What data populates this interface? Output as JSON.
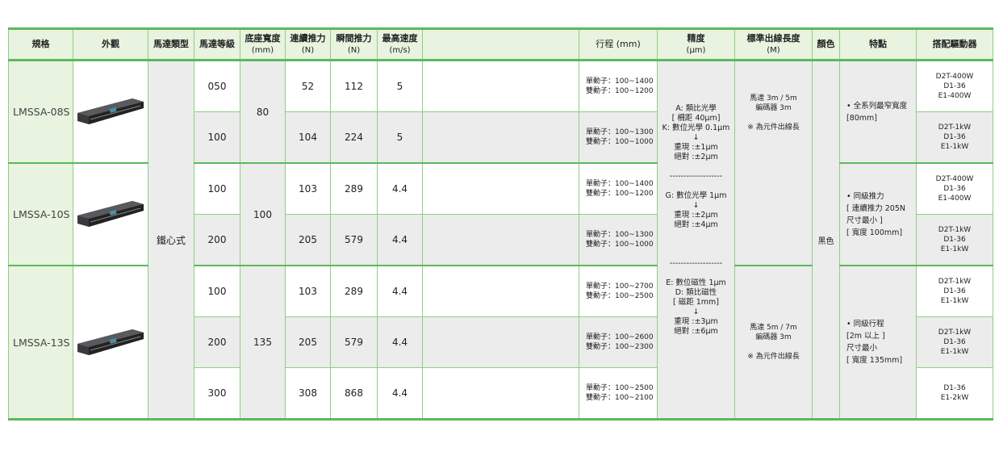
{
  "header": {
    "model": "規格",
    "appearance": "外觀",
    "motor_type": "馬達類型",
    "motor_grade": "馬達等級",
    "base_width": "底座寬度",
    "base_width_unit": "(mm)",
    "cont_force": "連續推力",
    "cont_force_unit": "(N)",
    "peak_force": "瞬間推力",
    "peak_force_unit": "(N)",
    "max_speed": "最高速度",
    "max_speed_unit": "(m/s)",
    "stroke": "行程 (mm)",
    "precision": "精度",
    "precision_unit": "(µm)",
    "cable": "標準出線長度",
    "cable_unit": "(M)",
    "color": "顏色",
    "features": "特點",
    "driver": "搭配驅動器"
  },
  "motor_type": "鐵心式",
  "color": "黑色",
  "groups": [
    {
      "model": "LMSSA-08S",
      "base_width": "80",
      "cable": [
        "馬達 3m / 5m",
        "編碼器 3m",
        "※ 為元件出線長"
      ],
      "features": [
        "全系列最窄寬度",
        "[80mm]"
      ],
      "rows": [
        {
          "grade": "050",
          "cont": "52",
          "peak": "112",
          "speed": "5",
          "stroke": [
            "單動子：100~1400",
            "雙動子：100~1200"
          ],
          "driver": [
            "D2T-400W",
            "D1-36",
            "E1-400W"
          ]
        },
        {
          "grade": "100",
          "cont": "104",
          "peak": "224",
          "speed": "5",
          "stroke": [
            "單動子：100~1300",
            "雙動子：100~1000"
          ],
          "driver": [
            "D2T-1kW",
            "D1-36",
            "E1-1kW"
          ]
        }
      ]
    },
    {
      "model": "LMSSA-10S",
      "base_width": "100",
      "features": [
        "同級推力",
        "[ 連續推力 205N",
        "尺寸最小 ]",
        "[ 寬度 100mm]"
      ],
      "rows": [
        {
          "grade": "100",
          "cont": "103",
          "peak": "289",
          "speed": "4.4",
          "stroke": [
            "單動子：100~1400",
            "雙動子：100~1200"
          ],
          "driver": [
            "D2T-400W",
            "D1-36",
            "E1-400W"
          ]
        },
        {
          "grade": "200",
          "cont": "205",
          "peak": "579",
          "speed": "4.4",
          "stroke": [
            "單動子：100~1300",
            "雙動子：100~1000"
          ],
          "driver": [
            "D2T-1kW",
            "D1-36",
            "E1-1kW"
          ]
        }
      ]
    },
    {
      "model": "LMSSA-13S",
      "base_width": "135",
      "cable": [
        "馬達 5m / 7m",
        "編碼器 3m",
        "※ 為元件出線長"
      ],
      "features": [
        "同級行程",
        "[2m 以上 ]",
        "尺寸最小",
        "[ 寬度 135mm]"
      ],
      "rows": [
        {
          "grade": "100",
          "cont": "103",
          "peak": "289",
          "speed": "4.4",
          "stroke": [
            "單動子：100~2700",
            "雙動子：100~2500"
          ],
          "driver": [
            "D2T-1kW",
            "D1-36",
            "E1-1kW"
          ]
        },
        {
          "grade": "200",
          "cont": "205",
          "peak": "579",
          "speed": "4.4",
          "stroke": [
            "單動子：100~2600",
            "雙動子：100~2300"
          ],
          "driver": [
            "D2T-1kW",
            "D1-36",
            "E1-1kW"
          ]
        },
        {
          "grade": "300",
          "cont": "308",
          "peak": "868",
          "speed": "4.4",
          "stroke": [
            "單動子：100~2500",
            "雙動子：100~2100"
          ],
          "driver": [
            "D1-36",
            "E1-2kW"
          ]
        }
      ]
    }
  ],
  "precision": {
    "block1": [
      "A: 類比光學",
      "[ 柵距 40µm]",
      "K: 數位光學 0.1µm",
      "↓",
      "重現 :±1µm",
      "絕對 :±2µm"
    ],
    "block2": [
      "G: 數位光學 1µm",
      "↓",
      "重現 :±2µm",
      "絕對 :±4µm"
    ],
    "block3": [
      "E: 數位磁性 1µm",
      "D: 類比磁性",
      "[ 磁距 1mm]",
      "↓",
      "重現 :±3µm",
      "絕對 :±6µm"
    ],
    "divider": "-------------------"
  },
  "colors": {
    "accent": "#5cb85c",
    "header_bg": "#e8f3e0",
    "cell_gray": "#ececec"
  }
}
